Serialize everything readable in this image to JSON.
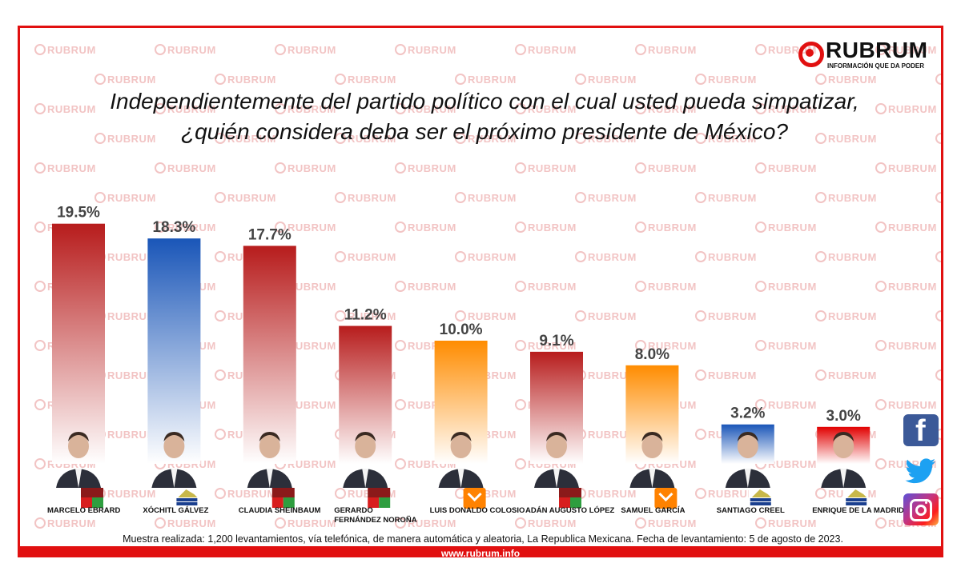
{
  "brand": {
    "name": "RUBRUM",
    "tagline": "INFORMACIÓN QUE DA PODER",
    "watermark": "RUBRUM",
    "url": "www.rubrum.info",
    "accent": "#e11010"
  },
  "title": {
    "line1": "Independientemente del partido político con el cual usted pueda simpatizar,",
    "line2": "¿quién considera deba ser el próximo presidente de México?"
  },
  "chart_data": {
    "type": "bar",
    "categories": [
      "MARCELO EBRARD",
      "XÓCHITL GÁLVEZ",
      "CLAUDIA SHEINBAUM",
      "GERARDO FERNÁNDEZ NOROÑA",
      "LUIS DONALDO COLOSIO",
      "ADÁN AUGUSTO LÓPEZ",
      "SAMUEL GARCÍA",
      "SANTIAGO CREEL",
      "ENRIQUE DE LA MADRID"
    ],
    "values": [
      19.5,
      18.3,
      17.7,
      11.2,
      10.0,
      9.1,
      8.0,
      3.2,
      3.0
    ],
    "value_labels": [
      "19.5%",
      "18.3%",
      "17.7%",
      "11.2%",
      "10.0%",
      "9.1%",
      "8.0%",
      "3.2%",
      "3.0%"
    ],
    "bar_colors": [
      "#b71c1c",
      "#1a56b8",
      "#b71c1c",
      "#b71c1c",
      "#ff8c00",
      "#b71c1c",
      "#ff8c00",
      "#1a56b8",
      "#e10000"
    ],
    "party_badges": [
      "morena-pt-pvem",
      "frente-amplio",
      "morena-pt-pvem",
      "morena-pt-pvem",
      "movimiento-ciudadano",
      "morena-pt-pvem",
      "movimiento-ciudadano",
      "frente-amplio",
      "frente-amplio"
    ],
    "title": "",
    "xlabel": "",
    "ylabel": "",
    "grid": false,
    "legend": "none"
  },
  "footnote": "Muestra realizada: 1,200 levantamientos, vía telefónica, de manera automática y aleatoria,  La Republica Mexicana. Fecha de levantamiento: 5 de agosto de 2023.",
  "social": [
    "facebook",
    "twitter",
    "instagram"
  ]
}
